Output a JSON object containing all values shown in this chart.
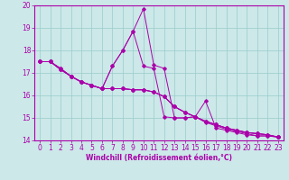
{
  "xlabel": "Windchill (Refroidissement éolien,°C)",
  "xlim": [
    -0.5,
    23.5
  ],
  "ylim": [
    14,
    20
  ],
  "xticks": [
    0,
    1,
    2,
    3,
    4,
    5,
    6,
    7,
    8,
    9,
    10,
    11,
    12,
    13,
    14,
    15,
    16,
    17,
    18,
    19,
    20,
    21,
    22,
    23
  ],
  "yticks": [
    14,
    15,
    16,
    17,
    18,
    19,
    20
  ],
  "bg_color": "#cce8e8",
  "line_color": "#aa00aa",
  "grid_color": "#99cccc",
  "series": [
    [
      17.5,
      17.5,
      17.2,
      16.85,
      16.6,
      16.45,
      16.3,
      17.3,
      18.0,
      18.85,
      19.85,
      17.35,
      17.2,
      15.0,
      15.0,
      15.05,
      15.75,
      14.55,
      14.45,
      14.35,
      14.25,
      14.2,
      14.2,
      14.15
    ],
    [
      17.5,
      17.5,
      17.2,
      16.85,
      16.6,
      16.45,
      16.3,
      17.3,
      18.0,
      18.85,
      17.3,
      17.2,
      15.05,
      15.0,
      15.0,
      15.05,
      14.8,
      14.65,
      14.5,
      14.4,
      14.3,
      14.2,
      14.2,
      14.15
    ],
    [
      17.5,
      17.5,
      17.15,
      16.85,
      16.6,
      16.45,
      16.3,
      16.3,
      16.3,
      16.25,
      16.25,
      16.15,
      15.95,
      15.5,
      15.25,
      15.05,
      14.85,
      14.7,
      14.55,
      14.45,
      14.35,
      14.3,
      14.25,
      14.15
    ],
    [
      17.5,
      17.5,
      17.15,
      16.85,
      16.6,
      16.45,
      16.3,
      16.3,
      16.3,
      16.25,
      16.25,
      16.15,
      15.95,
      15.5,
      15.25,
      15.05,
      14.85,
      14.7,
      14.55,
      14.45,
      14.35,
      14.3,
      14.25,
      14.15
    ],
    [
      17.5,
      17.5,
      17.15,
      16.85,
      16.6,
      16.45,
      16.3,
      16.3,
      16.3,
      16.25,
      16.25,
      16.15,
      15.95,
      15.5,
      15.25,
      15.05,
      14.85,
      14.7,
      14.55,
      14.45,
      14.35,
      14.3,
      14.25,
      14.15
    ]
  ],
  "tick_fontsize": 5.5,
  "xlabel_fontsize": 5.5
}
